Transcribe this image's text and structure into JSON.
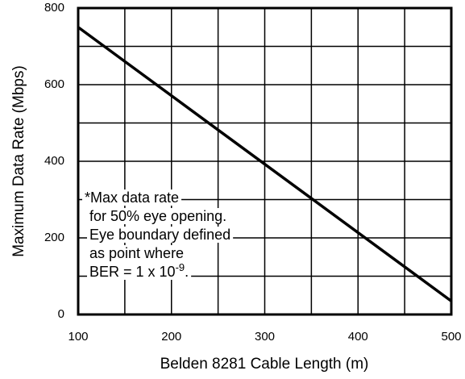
{
  "chart_data": {
    "type": "line",
    "x_label": "Belden 8281 Cable Length (m)",
    "y_label": "Maximum Data Rate (Mbps)",
    "x": [
      100,
      500
    ],
    "series": [
      {
        "color": "#000000",
        "values": [
          750,
          35
        ]
      }
    ],
    "xlim": [
      100,
      500
    ],
    "xticks": [
      100,
      200,
      300,
      400,
      500
    ],
    "x_minor_ticks": [
      150,
      250,
      350,
      450
    ],
    "ylim": [
      0,
      800
    ],
    "yticks": [
      0,
      200,
      400,
      600,
      800
    ],
    "y_minor_ticks": [
      100,
      300,
      500,
      700
    ],
    "grid": true,
    "annotation": {
      "lines": [
        "*Max data rate",
        "for 50% eye opening.",
        "Eye boundary defined",
        "as point where"
      ],
      "last_line": {
        "text": "BER = 1 x 10",
        "superscript": "-9",
        "suffix": "."
      }
    }
  }
}
